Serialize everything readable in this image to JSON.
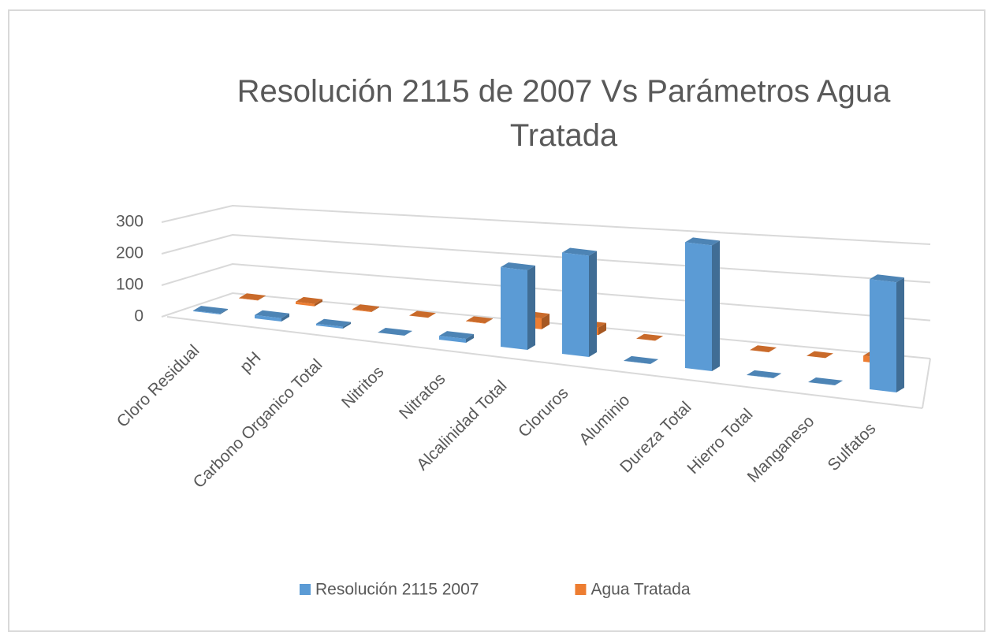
{
  "chart_data": {
    "type": "bar3d",
    "title": "Resolución 2115 de 2007 Vs Parámetros Agua Tratada",
    "categories": [
      "Cloro Residual",
      "pH",
      "Carbono Organico Total",
      "Nitritos",
      "Nitratos",
      "Alcalinidad Total",
      "Cloruros",
      "Aluminio",
      "Dureza Total",
      "Hierro Total",
      "Manganeso",
      "Sulfatos"
    ],
    "series": [
      {
        "name": "Resolución 2115 2007",
        "color": "#5b9bd5",
        "values": [
          2,
          9,
          5,
          0.1,
          10,
          200,
          250,
          0.2,
          300,
          0.3,
          0.1,
          250
        ]
      },
      {
        "name": "Agua Tratada",
        "color": "#ed7d31",
        "values": [
          1,
          7,
          2,
          0.01,
          1,
          30,
          20,
          0.1,
          40,
          0.1,
          0.05,
          15
        ]
      }
    ],
    "ylim": [
      0,
      300
    ],
    "yticks": [
      0,
      100,
      200,
      300
    ],
    "grid": true,
    "legend": "bottom"
  }
}
